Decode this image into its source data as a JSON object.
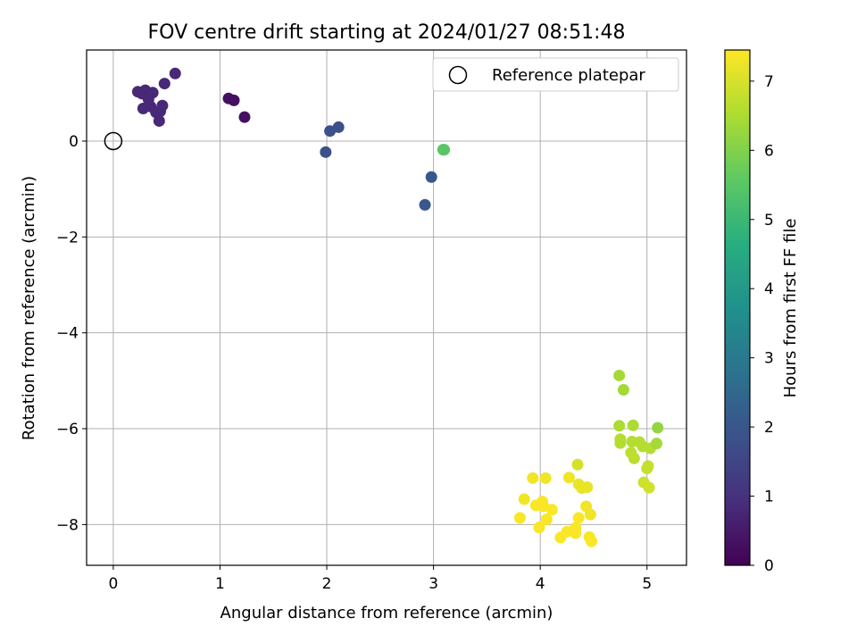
{
  "chart_data": {
    "type": "scatter",
    "title": "FOV centre drift starting at 2024/01/27 08:51:48",
    "xlabel": "Angular distance from reference (arcmin)",
    "ylabel": "Rotation from reference (arcmin)",
    "xlim": [
      -0.25,
      5.37
    ],
    "ylim": [
      -8.85,
      1.9
    ],
    "xticks": [
      0,
      1,
      2,
      3,
      4,
      5
    ],
    "yticks": [
      0,
      -2,
      -4,
      -6,
      -8
    ],
    "xtick_labels": [
      "0",
      "1",
      "2",
      "3",
      "4",
      "5"
    ],
    "ytick_labels": [
      "0",
      "−2",
      "−4",
      "−6",
      "−8"
    ],
    "grid": true,
    "legend": {
      "position": "top-right",
      "label": "Reference platepar"
    },
    "reference_point": {
      "x": 0,
      "y": 0
    },
    "colorbar": {
      "label": "Hours from first FF file",
      "colormap": "viridis",
      "range": [
        0,
        7.45
      ],
      "ticks": [
        0,
        1,
        2,
        3,
        4,
        5,
        6,
        7
      ],
      "tick_labels": [
        "0",
        "1",
        "2",
        "3",
        "4",
        "5",
        "6",
        "7"
      ]
    },
    "points": [
      {
        "x": 0.23,
        "y": 1.03,
        "t": 0.8
      },
      {
        "x": 0.27,
        "y": 0.99,
        "t": 0.8
      },
      {
        "x": 0.3,
        "y": 1.06,
        "t": 0.8
      },
      {
        "x": 0.33,
        "y": 0.87,
        "t": 0.8
      },
      {
        "x": 0.37,
        "y": 1.01,
        "t": 0.8
      },
      {
        "x": 0.28,
        "y": 0.68,
        "t": 0.8
      },
      {
        "x": 0.35,
        "y": 0.72,
        "t": 0.8
      },
      {
        "x": 0.4,
        "y": 0.6,
        "t": 0.8
      },
      {
        "x": 0.44,
        "y": 0.62,
        "t": 0.8
      },
      {
        "x": 0.46,
        "y": 0.74,
        "t": 0.8
      },
      {
        "x": 0.43,
        "y": 0.42,
        "t": 0.8
      },
      {
        "x": 0.48,
        "y": 1.2,
        "t": 0.8
      },
      {
        "x": 0.58,
        "y": 1.41,
        "t": 0.8
      },
      {
        "x": 1.08,
        "y": 0.89,
        "t": 0.3
      },
      {
        "x": 1.13,
        "y": 0.85,
        "t": 0.3
      },
      {
        "x": 1.23,
        "y": 0.5,
        "t": 0.3
      },
      {
        "x": 1.99,
        "y": -0.23,
        "t": 1.8
      },
      {
        "x": 2.03,
        "y": 0.21,
        "t": 1.8
      },
      {
        "x": 2.11,
        "y": 0.29,
        "t": 1.8
      },
      {
        "x": 2.92,
        "y": -1.33,
        "t": 2.0
      },
      {
        "x": 2.98,
        "y": -0.75,
        "t": 2.0
      },
      {
        "x": 3.09,
        "y": -0.18,
        "t": 5.5
      },
      {
        "x": 3.1,
        "y": -0.18,
        "t": 5.5
      },
      {
        "x": 4.74,
        "y": -4.89,
        "t": 6.4
      },
      {
        "x": 4.78,
        "y": -5.19,
        "t": 6.4
      },
      {
        "x": 4.74,
        "y": -5.94,
        "t": 6.5
      },
      {
        "x": 4.87,
        "y": -5.93,
        "t": 6.5
      },
      {
        "x": 5.1,
        "y": -5.98,
        "t": 6.2
      },
      {
        "x": 4.75,
        "y": -6.22,
        "t": 6.6
      },
      {
        "x": 4.75,
        "y": -6.3,
        "t": 6.6
      },
      {
        "x": 4.86,
        "y": -6.27,
        "t": 6.6
      },
      {
        "x": 4.93,
        "y": -6.28,
        "t": 6.6
      },
      {
        "x": 4.96,
        "y": -6.37,
        "t": 6.6
      },
      {
        "x": 5.03,
        "y": -6.41,
        "t": 6.6
      },
      {
        "x": 5.09,
        "y": -6.31,
        "t": 6.4
      },
      {
        "x": 4.85,
        "y": -6.5,
        "t": 6.7
      },
      {
        "x": 4.88,
        "y": -6.62,
        "t": 6.7
      },
      {
        "x": 5.01,
        "y": -6.78,
        "t": 6.8
      },
      {
        "x": 5.0,
        "y": -6.83,
        "t": 6.8
      },
      {
        "x": 4.97,
        "y": -7.12,
        "t": 6.9
      },
      {
        "x": 5.02,
        "y": -7.23,
        "t": 6.9
      },
      {
        "x": 4.35,
        "y": -6.75,
        "t": 7.0
      },
      {
        "x": 3.93,
        "y": -7.03,
        "t": 7.3
      },
      {
        "x": 4.05,
        "y": -7.03,
        "t": 7.3
      },
      {
        "x": 4.27,
        "y": -7.02,
        "t": 7.3
      },
      {
        "x": 4.36,
        "y": -7.16,
        "t": 7.2
      },
      {
        "x": 4.39,
        "y": -7.24,
        "t": 7.2
      },
      {
        "x": 4.44,
        "y": -7.22,
        "t": 7.2
      },
      {
        "x": 3.85,
        "y": -7.47,
        "t": 7.3
      },
      {
        "x": 3.96,
        "y": -7.6,
        "t": 7.4
      },
      {
        "x": 4.02,
        "y": -7.52,
        "t": 7.4
      },
      {
        "x": 4.03,
        "y": -7.62,
        "t": 7.4
      },
      {
        "x": 4.11,
        "y": -7.69,
        "t": 7.4
      },
      {
        "x": 4.43,
        "y": -7.62,
        "t": 7.3
      },
      {
        "x": 4.47,
        "y": -7.79,
        "t": 7.3
      },
      {
        "x": 3.81,
        "y": -7.86,
        "t": 7.4
      },
      {
        "x": 4.06,
        "y": -7.89,
        "t": 7.4
      },
      {
        "x": 4.36,
        "y": -7.86,
        "t": 7.4
      },
      {
        "x": 3.99,
        "y": -8.06,
        "t": 7.4
      },
      {
        "x": 4.25,
        "y": -8.15,
        "t": 7.4
      },
      {
        "x": 4.33,
        "y": -8.07,
        "t": 7.4
      },
      {
        "x": 4.33,
        "y": -8.18,
        "t": 7.4
      },
      {
        "x": 4.19,
        "y": -8.27,
        "t": 7.4
      },
      {
        "x": 4.46,
        "y": -8.26,
        "t": 7.4
      },
      {
        "x": 4.48,
        "y": -8.35,
        "t": 7.4
      }
    ]
  }
}
